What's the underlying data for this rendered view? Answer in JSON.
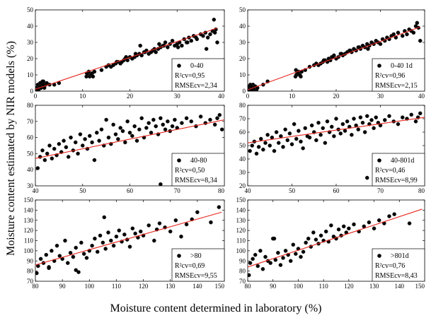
{
  "figure": {
    "xlabel": "Moisture content determined in laboratory (%)",
    "ylabel": "Moisture content estimated by NIR models (%)"
  },
  "colors": {
    "points": "#000000",
    "fit_line": "#e8261e",
    "frame": "#000000"
  },
  "chart_data": [
    {
      "type": "scatter",
      "panel": "top-left",
      "legend": {
        "label": "0-40",
        "r2": "R²cv=0,95",
        "rmse": "RMSEcv=2,34",
        "position": "bottom-right"
      },
      "xlim": [
        0,
        40
      ],
      "ylim": [
        0,
        50
      ],
      "xticks": [
        0,
        10,
        20,
        30,
        40
      ],
      "yticks": [
        0,
        10,
        20,
        30,
        40,
        50
      ],
      "x": [
        0.2,
        0.5,
        0.8,
        1.0,
        1.2,
        1.5,
        1.8,
        2.0,
        0.3,
        0.6,
        1.1,
        1.4,
        1.7,
        2.2,
        0.4,
        0.9,
        1.3,
        0.7,
        1.6,
        2.4,
        1.9,
        0.5,
        1.0,
        1.2,
        3.0,
        4.0,
        5.0,
        10.8,
        11.0,
        11.2,
        11.5,
        11.7,
        12.0,
        11.3,
        11.8,
        12.2,
        10.9,
        12.5,
        14.0,
        15.0,
        15.5,
        16.0,
        16.5,
        17.0,
        17.5,
        18.0,
        18.3,
        18.7,
        19.0,
        19.5,
        20.0,
        20.5,
        21.0,
        21.5,
        22.0,
        22.5,
        23.0,
        23.5,
        24.0,
        24.5,
        25.0,
        25.5,
        26.0,
        26.5,
        27.0,
        27.5,
        28.0,
        28.5,
        29.0,
        29.5,
        30.0,
        30.5,
        31.0,
        31.5,
        32.0,
        32.5,
        33.0,
        33.5,
        34.0,
        35.0,
        35.5,
        36.0,
        36.5,
        37.0,
        37.5,
        37.8,
        38.0,
        38.2,
        38.5,
        17.2,
        19.2,
        21.2,
        23.2,
        25.2,
        27.2,
        26.2,
        30.2,
        32.2,
        34.2,
        36.2,
        22.2,
        24.8
      ],
      "y": [
        2,
        4,
        3,
        5,
        2,
        6,
        3,
        4,
        1,
        2,
        5,
        3,
        6,
        4,
        0,
        2,
        3,
        1,
        4,
        5,
        2,
        1,
        3,
        2,
        4,
        4,
        5,
        9,
        10,
        11,
        9,
        10,
        11,
        12,
        10,
        9,
        11,
        12,
        13,
        15,
        16,
        15,
        16,
        17,
        18,
        17,
        18,
        19,
        20,
        19,
        21,
        20,
        21,
        22,
        23,
        22,
        24,
        25,
        23,
        24,
        25,
        24,
        26,
        27,
        28,
        30,
        27,
        29,
        31,
        28,
        29,
        30,
        28,
        32,
        30,
        33,
        31,
        34,
        33,
        35,
        34,
        36,
        33,
        35,
        37,
        44,
        36,
        38,
        30,
        18,
        21,
        23,
        24,
        26,
        28,
        29,
        27,
        30,
        32,
        26,
        28,
        25
      ],
      "fit": [
        [
          0,
          1.2
        ],
        [
          38.5,
          38.8
        ]
      ]
    },
    {
      "type": "scatter",
      "panel": "top-right",
      "legend": {
        "label": "0-40 1d",
        "r2": "R²cv=0,96",
        "rmse": "RMSEcv=2,15",
        "position": "bottom-right"
      },
      "xlim": [
        0,
        40
      ],
      "ylim": [
        0,
        50
      ],
      "xticks": [
        0,
        10,
        20,
        30,
        40
      ],
      "yticks": [
        0,
        10,
        20,
        30,
        40,
        50
      ],
      "x": [
        0.2,
        0.5,
        0.8,
        1.0,
        1.2,
        1.5,
        1.8,
        2.0,
        0.3,
        0.6,
        1.1,
        1.4,
        1.7,
        2.2,
        0.4,
        0.9,
        1.3,
        0.7,
        3.5,
        4.5,
        10.8,
        11.0,
        11.2,
        11.5,
        11.7,
        12.0,
        11.3,
        11.8,
        12.2,
        10.9,
        13.0,
        14.0,
        15.0,
        15.5,
        16.0,
        16.5,
        17.0,
        17.5,
        18.0,
        18.3,
        18.7,
        19.0,
        19.5,
        20.0,
        20.5,
        21.0,
        21.5,
        22.0,
        22.5,
        23.0,
        23.5,
        24.0,
        24.5,
        25.0,
        25.5,
        26.0,
        26.5,
        27.0,
        27.5,
        28.0,
        28.5,
        29.0,
        29.5,
        30.0,
        30.5,
        31.0,
        31.5,
        32.0,
        32.5,
        33.0,
        33.5,
        34.0,
        35.0,
        35.5,
        36.0,
        36.5,
        37.0,
        37.5,
        38.0,
        38.3,
        38.6,
        39.0,
        17.2,
        19.2,
        21.2,
        23.2,
        25.2,
        27.2
      ],
      "y": [
        1,
        2,
        3,
        2,
        4,
        3,
        2,
        1,
        3,
        4,
        2,
        1,
        3,
        2,
        0,
        1,
        2,
        3,
        4,
        6,
        9,
        10,
        11,
        12,
        10,
        9,
        11,
        10,
        12,
        13,
        13,
        15,
        16,
        17,
        16,
        17,
        18,
        19,
        18,
        20,
        19,
        21,
        22,
        20,
        21,
        23,
        22,
        23,
        24,
        25,
        24,
        26,
        25,
        27,
        26,
        28,
        27,
        29,
        28,
        30,
        29,
        31,
        30,
        29,
        32,
        31,
        33,
        32,
        34,
        35,
        33,
        36,
        34,
        37,
        35,
        38,
        37,
        36,
        40,
        42,
        39,
        31,
        19,
        21,
        23,
        25,
        27,
        26
      ],
      "fit": [
        [
          0,
          0.8
        ],
        [
          39,
          39.5
        ]
      ]
    },
    {
      "type": "scatter",
      "panel": "middle-left",
      "legend": {
        "label": "40-80",
        "r2": "R²cv=0,50",
        "rmse": "RMSEcv=8,34",
        "position": "bottom-right"
      },
      "xlim": [
        40,
        80
      ],
      "ylim": [
        30,
        80
      ],
      "xticks": [
        40,
        50,
        60,
        70,
        80
      ],
      "yticks": [
        30,
        40,
        50,
        60,
        70,
        80
      ],
      "x": [
        40.5,
        41.0,
        41.5,
        42.0,
        42.5,
        43.0,
        43.5,
        44.0,
        44.5,
        45.0,
        45.5,
        46.0,
        46.5,
        47.0,
        47.5,
        48.0,
        48.5,
        49.0,
        49.5,
        50.0,
        50.5,
        51.0,
        51.5,
        52.0,
        52.5,
        53.0,
        53.5,
        54.0,
        54.5,
        55.0,
        55.5,
        56.0,
        56.5,
        57.0,
        57.5,
        58.0,
        58.5,
        59.0,
        59.5,
        60.0,
        60.5,
        61.0,
        61.5,
        62.0,
        62.5,
        63.0,
        63.5,
        64.0,
        64.5,
        65.0,
        65.5,
        66.0,
        66.5,
        67.0,
        67.5,
        68.0,
        68.5,
        69.0,
        69.5,
        70.0,
        71.0,
        72.0,
        73.0,
        74.0,
        75.0,
        76.0,
        77.0,
        78.0,
        78.5,
        79.0,
        79.5,
        66.5
      ],
      "y": [
        41,
        48,
        52,
        46,
        50,
        55,
        47,
        53,
        49,
        56,
        51,
        58,
        54,
        48,
        60,
        52,
        57,
        50,
        62,
        55,
        59,
        53,
        61,
        57,
        46,
        63,
        58,
        65,
        55,
        71,
        60,
        56,
        68,
        62,
        59,
        66,
        64,
        57,
        70,
        63,
        61,
        67,
        58,
        65,
        72,
        60,
        66,
        69,
        63,
        71,
        67,
        62,
        72,
        68,
        65,
        70,
        64,
        67,
        71,
        66,
        69,
        72,
        70,
        67,
        73,
        69,
        71,
        68,
        72,
        74,
        65,
        31
      ],
      "fit": [
        [
          40,
          47
        ],
        [
          80,
          71
        ]
      ]
    },
    {
      "type": "scatter",
      "panel": "middle-right",
      "legend": {
        "label": "40-801d",
        "r2": "R²cv=0,46",
        "rmse": "RMSEcv=8,99",
        "position": "bottom-right"
      },
      "xlim": [
        40,
        80
      ],
      "ylim": [
        20,
        80
      ],
      "xticks": [
        40,
        50,
        60,
        70,
        80
      ],
      "yticks": [
        20,
        30,
        40,
        50,
        60,
        70,
        80
      ],
      "x": [
        40.5,
        41.0,
        41.5,
        42.0,
        42.5,
        43.0,
        43.5,
        44.0,
        44.5,
        45.0,
        45.5,
        46.0,
        46.5,
        47.0,
        47.5,
        48.0,
        48.5,
        49.0,
        49.5,
        50.0,
        50.5,
        51.0,
        51.5,
        52.0,
        52.5,
        53.0,
        53.5,
        54.0,
        54.5,
        55.0,
        55.5,
        56.0,
        56.5,
        57.0,
        57.5,
        58.0,
        58.5,
        59.0,
        59.5,
        60.0,
        60.5,
        61.0,
        61.5,
        62.0,
        62.5,
        63.0,
        63.5,
        64.0,
        64.5,
        65.0,
        65.5,
        66.0,
        66.5,
        67.0,
        67.5,
        68.0,
        68.5,
        69.0,
        69.5,
        70.0,
        71.0,
        72.0,
        73.0,
        74.0,
        75.0,
        76.0,
        77.0,
        78.0,
        78.5,
        79.0,
        67.0
      ],
      "y": [
        46,
        50,
        53,
        44,
        49,
        55,
        47,
        52,
        58,
        50,
        56,
        46,
        60,
        52,
        57,
        49,
        62,
        54,
        59,
        51,
        66,
        55,
        61,
        53,
        48,
        63,
        57,
        56,
        65,
        60,
        54,
        67,
        58,
        63,
        52,
        68,
        60,
        64,
        57,
        70,
        62,
        59,
        66,
        61,
        68,
        64,
        58,
        70,
        65,
        62,
        71,
        67,
        60,
        72,
        66,
        69,
        63,
        71,
        67,
        65,
        69,
        72,
        68,
        66,
        71,
        70,
        73,
        68,
        71,
        74,
        26
      ],
      "fit": [
        [
          40,
          52
        ],
        [
          80,
          71
        ]
      ]
    },
    {
      "type": "scatter",
      "panel": "bottom-left",
      "legend": {
        "label": ">80",
        "r2": "R²cv=0,69",
        "rmse": "RMSEcv=9,55",
        "position": "bottom-right"
      },
      "xlim": [
        80,
        150
      ],
      "ylim": [
        70,
        150
      ],
      "xticks": [
        80,
        90,
        100,
        110,
        120,
        130,
        140,
        150
      ],
      "yticks": [
        70,
        80,
        90,
        100,
        110,
        120,
        130,
        140,
        150
      ],
      "x": [
        80.5,
        81.0,
        82.0,
        83.0,
        84.0,
        85.0,
        86.0,
        87.0,
        88.0,
        89.0,
        90.0,
        91.0,
        92.0,
        93.0,
        94.0,
        95.0,
        96.0,
        97.0,
        98.0,
        99.0,
        100.0,
        101.0,
        102.0,
        103.0,
        104.0,
        105.0,
        106.0,
        107.0,
        108.0,
        109.0,
        110.0,
        111.0,
        112.0,
        113.0,
        114.0,
        115.0,
        116.0,
        117.0,
        118.0,
        119.0,
        120.0,
        122.0,
        124.0,
        125.0,
        126.0,
        128.0,
        130.0,
        132.0,
        134.0,
        136.0,
        138.0,
        140.0,
        145.0,
        148.0,
        105.5,
        85.0,
        95.0
      ],
      "y": [
        78,
        85,
        92,
        88,
        96,
        84,
        100,
        90,
        105,
        95,
        92,
        110,
        88,
        98,
        94,
        103,
        79,
        108,
        97,
        93,
        100,
        105,
        112,
        99,
        115,
        108,
        102,
        118,
        110,
        105,
        114,
        120,
        109,
        116,
        111,
        104,
        122,
        117,
        113,
        119,
        115,
        125,
        110,
        121,
        127,
        123,
        119,
        130,
        114,
        126,
        131,
        138,
        128,
        143,
        133,
        83,
        81
      ],
      "fit": [
        [
          80,
          86
        ],
        [
          149,
          138
        ]
      ]
    },
    {
      "type": "scatter",
      "panel": "bottom-right",
      "legend": {
        "label": ">801d",
        "r2": "R²cv=0,76",
        "rmse": "RMSEcv=8,43",
        "position": "bottom-right"
      },
      "xlim": [
        80,
        150
      ],
      "ylim": [
        70,
        150
      ],
      "xticks": [
        80,
        90,
        100,
        110,
        120,
        130,
        140,
        150
      ],
      "yticks": [
        70,
        80,
        90,
        100,
        110,
        120,
        130,
        140,
        150
      ],
      "x": [
        80.5,
        81.0,
        82.0,
        83.0,
        84.0,
        85.0,
        86.0,
        87.0,
        88.0,
        89.0,
        90.0,
        91.0,
        92.0,
        93.0,
        94.0,
        95.0,
        96.0,
        97.0,
        98.0,
        99.0,
        100.0,
        101.0,
        102.0,
        103.0,
        104.0,
        105.0,
        106.0,
        107.0,
        108.0,
        109.0,
        110.0,
        111.0,
        112.0,
        113.0,
        114.0,
        115.0,
        116.0,
        117.0,
        118.0,
        119.0,
        120.0,
        122.0,
        124.0,
        126.0,
        128.0,
        130.0,
        132.0,
        134.0,
        136.0,
        138.0,
        144.0,
        90.5
      ],
      "y": [
        76,
        88,
        92,
        96,
        85,
        100,
        82,
        94,
        90,
        88,
        112,
        91,
        98,
        86,
        93,
        100,
        96,
        90,
        106,
        97,
        102,
        94,
        99,
        108,
        112,
        104,
        118,
        111,
        107,
        115,
        110,
        119,
        109,
        125,
        114,
        112,
        121,
        115,
        124,
        118,
        122,
        126,
        119,
        124,
        128,
        122,
        130,
        127,
        134,
        136,
        127,
        112
      ],
      "fit": [
        [
          80,
          84
        ],
        [
          149,
          141
        ]
      ]
    }
  ]
}
